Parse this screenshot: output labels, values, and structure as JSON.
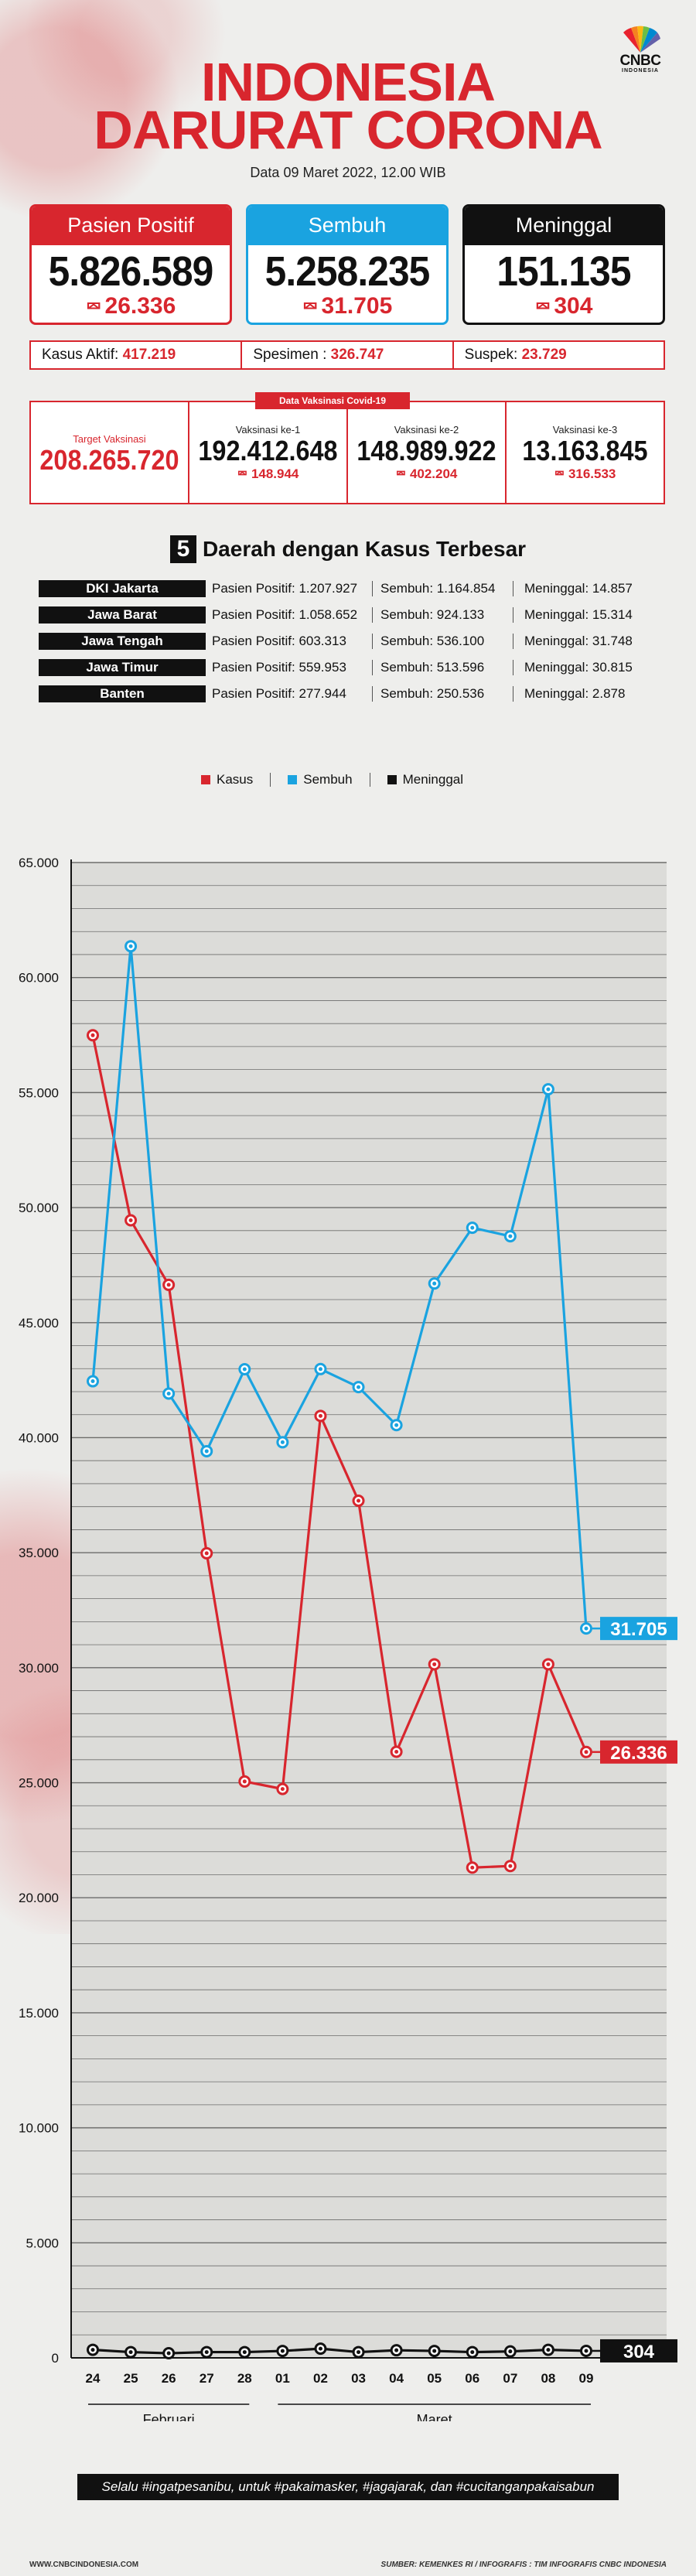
{
  "header": {
    "title_line1": "INDONESIA",
    "title_line2": "DARURAT CORONA",
    "date": "Data 09 Maret 2022, 12.00 WIB",
    "logo_brand": "CNBC",
    "logo_sub": "INDONESIA"
  },
  "stats": {
    "positif": {
      "label": "Pasien Positif",
      "value": "5.826.589",
      "delta": "26.336",
      "color": "#d8262e"
    },
    "sembuh": {
      "label": "Sembuh",
      "value": "5.258.235",
      "delta": "31.705",
      "color": "#1aa3e0"
    },
    "meninggal": {
      "label": "Meninggal",
      "value": "151.135",
      "delta": "304",
      "color": "#111111"
    }
  },
  "kasus": {
    "aktif_label": "Kasus Aktif:",
    "aktif_value": "417.219",
    "spesimen_label": "Spesimen :",
    "spesimen_value": "326.747",
    "suspek_label": "Suspek:",
    "suspek_value": "23.729"
  },
  "vaksinasi": {
    "section_label": "Data Vaksinasi Covid-19",
    "target_label": "Target Vaksinasi",
    "target_value": "208.265.720",
    "dose1_label": "Vaksinasi ke-1",
    "dose1_value": "192.412.648",
    "dose1_delta": "148.944",
    "dose2_label": "Vaksinasi ke-2",
    "dose2_value": "148.989.922",
    "dose2_delta": "402.204",
    "dose3_label": "Vaksinasi ke-3",
    "dose3_value": "13.163.845",
    "dose3_delta": "316.533"
  },
  "daerah": {
    "number": "5",
    "title": "Daerah dengan Kasus Terbesar",
    "rows": [
      {
        "name": "DKI Jakarta",
        "positif": "Pasien Positif: 1.207.927",
        "sembuh": "Sembuh: 1.164.854",
        "meninggal": "Meninggal: 14.857"
      },
      {
        "name": "Jawa Barat",
        "positif": "Pasien Positif: 1.058.652",
        "sembuh": "Sembuh: 924.133",
        "meninggal": "Meninggal: 15.314"
      },
      {
        "name": "Jawa Tengah",
        "positif": "Pasien Positif: 603.313",
        "sembuh": "Sembuh: 536.100",
        "meninggal": "Meninggal: 31.748"
      },
      {
        "name": "Jawa Timur",
        "positif": "Pasien Positif: 559.953",
        "sembuh": "Sembuh: 513.596",
        "meninggal": "Meninggal: 30.815"
      },
      {
        "name": "Banten",
        "positif": "Pasien Positif: 277.944",
        "sembuh": "Sembuh: 250.536",
        "meninggal": "Meninggal: 2.878"
      }
    ]
  },
  "chart_data": {
    "type": "line",
    "categories": [
      "24",
      "25",
      "26",
      "27",
      "28",
      "01",
      "02",
      "03",
      "04",
      "05",
      "06",
      "07",
      "08",
      "09"
    ],
    "month_labels": [
      {
        "label": "Februari",
        "from": 0,
        "to": 4
      },
      {
        "label": "Maret",
        "from": 5,
        "to": 13
      }
    ],
    "series": [
      {
        "name": "Kasus",
        "color": "#d8262e",
        "values": [
          57491,
          49447,
          46643,
          34974,
          25054,
          24728,
          40946,
          37259,
          26347,
          30148,
          21311,
          21380,
          30148,
          26336
        ],
        "end_label": "26.336"
      },
      {
        "name": "Sembuh",
        "color": "#1aa3e0",
        "values": [
          42452,
          61361,
          41916,
          39412,
          42975,
          39800,
          42981,
          42198,
          40545,
          46701,
          49125,
          48756,
          55144,
          31705
        ],
        "end_label": "31.705"
      },
      {
        "name": "Meninggal",
        "color": "#111111",
        "values": [
          350,
          250,
          200,
          250,
          250,
          300,
          400,
          250,
          330,
          300,
          250,
          280,
          350,
          304
        ],
        "end_label": "304"
      }
    ],
    "yticks": [
      "0",
      "5.000",
      "10.000",
      "15.000",
      "20.000",
      "25.000",
      "30.000",
      "35.000",
      "40.000",
      "45.000",
      "50.000",
      "55.000",
      "60.000",
      "65.000"
    ],
    "ylim": [
      0,
      65000
    ],
    "grid": true,
    "legend": "top"
  },
  "footer": {
    "slogan": "Selalu #ingatpesanibu, untuk #pakaimasker, #jagajarak, dan #cucitanganpakaisabun",
    "website": "WWW.CNBCINDONESIA.COM",
    "source": "SUMBER: KEMENKES RI / INFOGRAFIS : TIM INFOGRAFIS CNBC INDONESIA"
  }
}
